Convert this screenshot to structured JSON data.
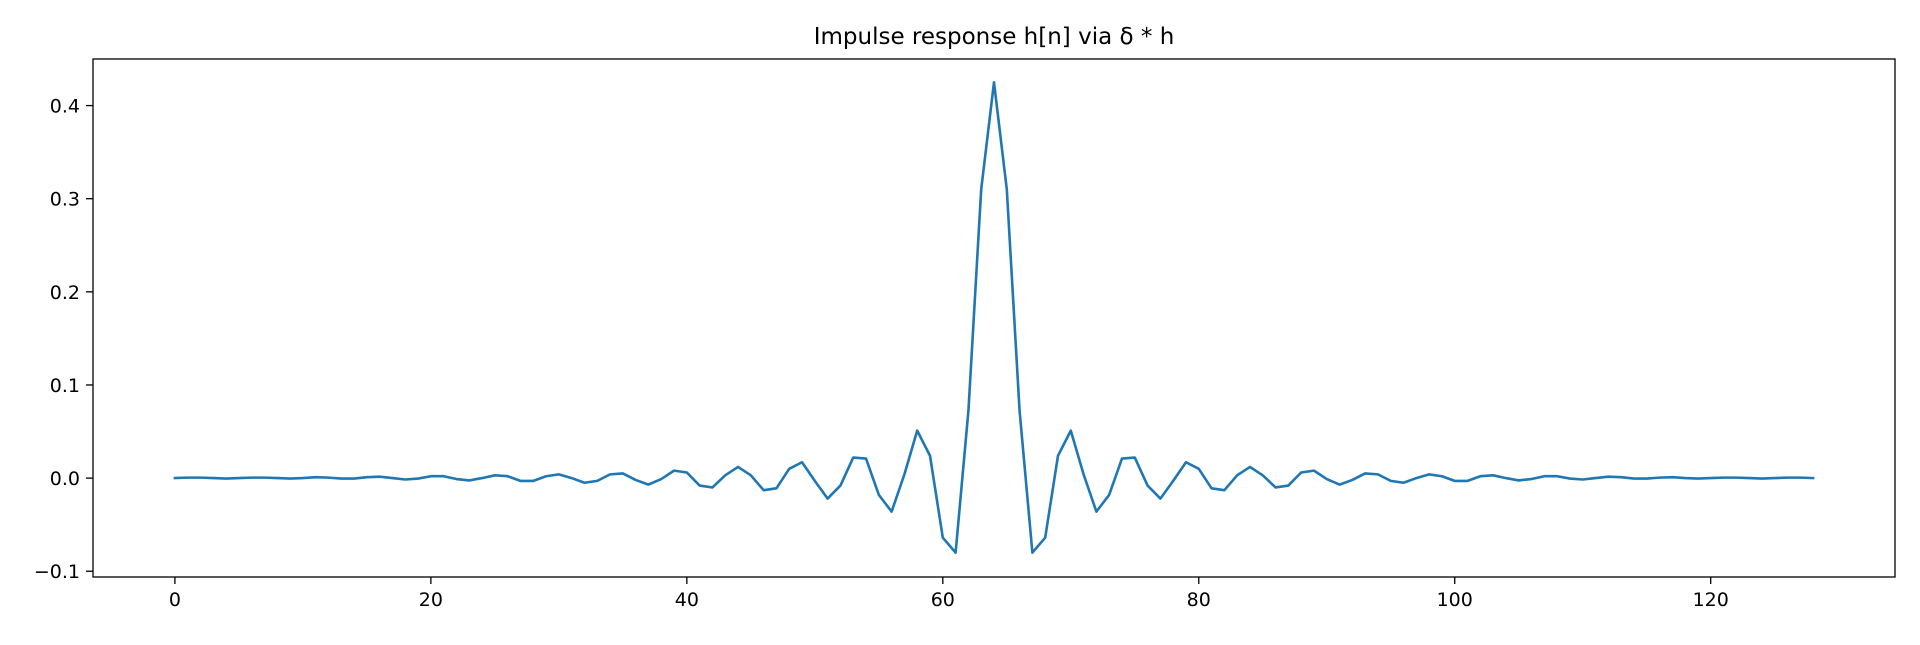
{
  "chart_data": {
    "type": "line",
    "title": "Impulse response h[n] via δ * h",
    "xlabel": "",
    "ylabel": "",
    "xlim": [
      -6.4,
      134.4
    ],
    "ylim": [
      -0.1062,
      0.45
    ],
    "xticks": [
      0,
      20,
      40,
      60,
      80,
      100,
      120
    ],
    "yticks": [
      -0.1,
      0.0,
      0.1,
      0.2,
      0.3,
      0.4
    ],
    "ytick_labels": [
      "−0.1",
      "0.0",
      "0.1",
      "0.2",
      "0.3",
      "0.4"
    ],
    "grid": false,
    "legend": "none",
    "series": [
      {
        "color": "#1f77b4",
        "x": [
          0,
          1,
          2,
          3,
          4,
          5,
          6,
          7,
          8,
          9,
          10,
          11,
          12,
          13,
          14,
          15,
          16,
          17,
          18,
          19,
          20,
          21,
          22,
          23,
          24,
          25,
          26,
          27,
          28,
          29,
          30,
          31,
          32,
          33,
          34,
          35,
          36,
          37,
          38,
          39,
          40,
          41,
          42,
          43,
          44,
          45,
          46,
          47,
          48,
          49,
          50,
          51,
          52,
          53,
          54,
          55,
          56,
          57,
          58,
          59,
          60,
          61,
          62,
          63,
          64,
          65,
          66,
          67,
          68,
          69,
          70,
          71,
          72,
          73,
          74,
          75,
          76,
          77,
          78,
          79,
          80,
          81,
          82,
          83,
          84,
          85,
          86,
          87,
          88,
          89,
          90,
          91,
          92,
          93,
          94,
          95,
          96,
          97,
          98,
          99,
          100,
          101,
          102,
          103,
          104,
          105,
          106,
          107,
          108,
          109,
          110,
          111,
          112,
          113,
          114,
          115,
          116,
          117,
          118,
          119,
          120,
          121,
          122,
          123,
          124,
          125,
          126,
          127,
          128
        ],
        "values": [
          0.0,
          0.0005,
          0.0005,
          0.0,
          -0.0005,
          0.0,
          0.0005,
          0.0005,
          0.0,
          -0.0005,
          0.0,
          0.001,
          0.0005,
          -0.0005,
          -0.0005,
          0.001,
          0.0015,
          0.0,
          -0.0015,
          -0.0005,
          0.002,
          0.002,
          -0.001,
          -0.0025,
          0.0,
          0.003,
          0.002,
          -0.003,
          -0.003,
          0.002,
          0.004,
          0.0,
          -0.005,
          -0.003,
          0.004,
          0.005,
          -0.002,
          -0.007,
          -0.001,
          0.008,
          0.006,
          -0.008,
          -0.01,
          0.003,
          0.012,
          0.003,
          -0.013,
          -0.011,
          0.01,
          0.017,
          -0.003,
          -0.022,
          -0.008,
          0.022,
          0.021,
          -0.018,
          -0.036,
          0.004,
          0.051,
          0.024,
          -0.064,
          -0.08,
          0.072,
          0.31,
          0.425,
          0.31,
          0.072,
          -0.08,
          -0.064,
          0.024,
          0.051,
          0.004,
          -0.036,
          -0.018,
          0.021,
          0.022,
          -0.008,
          -0.022,
          -0.003,
          0.017,
          0.01,
          -0.011,
          -0.013,
          0.003,
          0.012,
          0.003,
          -0.01,
          -0.008,
          0.006,
          0.008,
          -0.001,
          -0.007,
          -0.002,
          0.005,
          0.004,
          -0.003,
          -0.005,
          0.0,
          0.004,
          0.002,
          -0.003,
          -0.003,
          0.002,
          0.003,
          0.0,
          -0.0025,
          -0.001,
          0.002,
          0.002,
          -0.0005,
          -0.0015,
          0.0,
          0.0015,
          0.001,
          -0.0005,
          -0.0005,
          0.0005,
          0.001,
          0.0,
          -0.0005,
          0.0,
          0.0005,
          0.0005,
          0.0,
          -0.0005,
          0.0,
          0.0005,
          0.0005,
          0.0
        ]
      }
    ]
  }
}
